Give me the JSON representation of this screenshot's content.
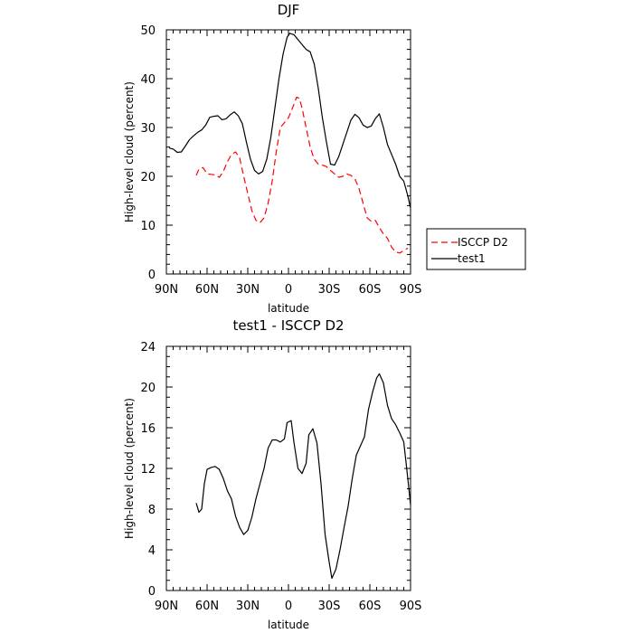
{
  "chart_data": [
    {
      "type": "line",
      "title": "DJF",
      "xlabel": "latitude",
      "ylabel": "High-level cloud (percent)",
      "xlim": [
        -90,
        90
      ],
      "ylim": [
        0,
        50
      ],
      "x_ticks": [
        -90,
        -60,
        -30,
        0,
        30,
        60,
        90
      ],
      "x_tick_labels": [
        "90N",
        "60N",
        "30N",
        "0",
        "30S",
        "60S",
        "90S"
      ],
      "y_ticks": [
        0,
        10,
        20,
        30,
        40,
        50
      ],
      "y_tick_labels": [
        "0",
        "10",
        "20",
        "30",
        "40",
        "50"
      ],
      "legend_position": "right",
      "grid": false,
      "series": [
        {
          "name": "ISCCP D2",
          "color": "#ff0000",
          "dash": "dashed",
          "points": [
            [
              -68,
              20.2
            ],
            [
              -66,
              21.5
            ],
            [
              -63,
              21.8
            ],
            [
              -60,
              20.5
            ],
            [
              -57,
              20.4
            ],
            [
              -54,
              20.3
            ],
            [
              -51,
              19.8
            ],
            [
              -48,
              21.0
            ],
            [
              -45,
              23.0
            ],
            [
              -42,
              24.5
            ],
            [
              -39,
              25.0
            ],
            [
              -36,
              23.8
            ],
            [
              -33,
              20.0
            ],
            [
              -30,
              16.5
            ],
            [
              -27,
              13.0
            ],
            [
              -24,
              11.0
            ],
            [
              -21,
              10.5
            ],
            [
              -18,
              11.5
            ],
            [
              -15,
              14.5
            ],
            [
              -12,
              19.0
            ],
            [
              -9,
              25.0
            ],
            [
              -6,
              30.0
            ],
            [
              -3,
              31.0
            ],
            [
              0,
              32.0
            ],
            [
              3,
              34.0
            ],
            [
              6,
              36.2
            ],
            [
              8,
              36.0
            ],
            [
              10,
              34.0
            ],
            [
              13,
              30.0
            ],
            [
              16,
              26.0
            ],
            [
              19,
              23.5
            ],
            [
              22,
              22.5
            ],
            [
              25,
              22.3
            ],
            [
              28,
              22.0
            ],
            [
              31,
              21.2
            ],
            [
              34,
              20.5
            ],
            [
              37,
              19.8
            ],
            [
              40,
              20.0
            ],
            [
              43,
              20.5
            ],
            [
              46,
              20.2
            ],
            [
              49,
              19.5
            ],
            [
              52,
              17.5
            ],
            [
              55,
              14.5
            ],
            [
              58,
              11.5
            ],
            [
              61,
              10.8
            ],
            [
              64,
              11.0
            ],
            [
              67,
              9.5
            ],
            [
              70,
              8.2
            ],
            [
              73,
              7.3
            ],
            [
              76,
              5.5
            ],
            [
              79,
              4.5
            ],
            [
              82,
              4.3
            ],
            [
              85,
              4.8
            ],
            [
              88,
              5.3
            ]
          ]
        },
        {
          "name": "test1",
          "color": "#000000",
          "dash": "solid",
          "points": [
            [
              -88,
              25.8
            ],
            [
              -85,
              25.6
            ],
            [
              -82,
              24.9
            ],
            [
              -79,
              25.0
            ],
            [
              -76,
              26.2
            ],
            [
              -73,
              27.5
            ],
            [
              -70,
              28.3
            ],
            [
              -67,
              29.0
            ],
            [
              -64,
              29.5
            ],
            [
              -61,
              30.5
            ],
            [
              -58,
              32.1
            ],
            [
              -55,
              32.3
            ],
            [
              -52,
              32.4
            ],
            [
              -49,
              31.6
            ],
            [
              -46,
              31.8
            ],
            [
              -43,
              32.6
            ],
            [
              -40,
              33.2
            ],
            [
              -37,
              32.4
            ],
            [
              -34,
              30.8
            ],
            [
              -31,
              27.0
            ],
            [
              -28,
              23.5
            ],
            [
              -25,
              21.2
            ],
            [
              -22,
              20.5
            ],
            [
              -19,
              21.0
            ],
            [
              -16,
              23.5
            ],
            [
              -13,
              28.0
            ],
            [
              -10,
              34.0
            ],
            [
              -7,
              40.0
            ],
            [
              -4,
              45.0
            ],
            [
              -1,
              48.5
            ],
            [
              1,
              49.3
            ],
            [
              4,
              49.0
            ],
            [
              7,
              48.0
            ],
            [
              10,
              47.0
            ],
            [
              13,
              46.0
            ],
            [
              16,
              45.5
            ],
            [
              19,
              43.0
            ],
            [
              22,
              38.0
            ],
            [
              25,
              32.0
            ],
            [
              28,
              27.0
            ],
            [
              31,
              22.5
            ],
            [
              34,
              22.3
            ],
            [
              37,
              24.0
            ],
            [
              40,
              26.5
            ],
            [
              43,
              29.0
            ],
            [
              46,
              31.5
            ],
            [
              49,
              32.7
            ],
            [
              52,
              32.0
            ],
            [
              55,
              30.5
            ],
            [
              58,
              30.0
            ],
            [
              61,
              30.3
            ],
            [
              64,
              31.8
            ],
            [
              67,
              32.8
            ],
            [
              70,
              30.0
            ],
            [
              73,
              26.5
            ],
            [
              76,
              24.5
            ],
            [
              79,
              22.5
            ],
            [
              82,
              20.0
            ],
            [
              85,
              19.0
            ],
            [
              88,
              16.0
            ],
            [
              90,
              13.5
            ]
          ]
        }
      ]
    },
    {
      "type": "line",
      "title": "test1 - ISCCP D2",
      "xlabel": "latitude",
      "ylabel": "High-level cloud (percent)",
      "xlim": [
        -90,
        90
      ],
      "ylim": [
        0,
        24
      ],
      "x_ticks": [
        -90,
        -60,
        -30,
        0,
        30,
        60,
        90
      ],
      "x_tick_labels": [
        "90N",
        "60N",
        "30N",
        "0",
        "30S",
        "60S",
        "90S"
      ],
      "y_ticks": [
        0,
        4,
        8,
        12,
        16,
        20,
        24
      ],
      "y_tick_labels": [
        "0",
        "4",
        "8",
        "12",
        "16",
        "20",
        "24"
      ],
      "grid": false,
      "series": [
        {
          "color": "#000000",
          "dash": "solid",
          "points": [
            [
              -68,
              8.6
            ],
            [
              -66,
              7.7
            ],
            [
              -64,
              8.0
            ],
            [
              -62,
              10.5
            ],
            [
              -60,
              11.9
            ],
            [
              -57,
              12.1
            ],
            [
              -54,
              12.2
            ],
            [
              -51,
              11.9
            ],
            [
              -48,
              11.0
            ],
            [
              -45,
              9.8
            ],
            [
              -42,
              9.0
            ],
            [
              -39,
              7.3
            ],
            [
              -36,
              6.2
            ],
            [
              -33,
              5.5
            ],
            [
              -30,
              5.9
            ],
            [
              -27,
              7.2
            ],
            [
              -24,
              9.0
            ],
            [
              -21,
              10.5
            ],
            [
              -18,
              12.0
            ],
            [
              -15,
              14.0
            ],
            [
              -12,
              14.8
            ],
            [
              -9,
              14.8
            ],
            [
              -6,
              14.6
            ],
            [
              -3,
              14.9
            ],
            [
              -1,
              16.5
            ],
            [
              2,
              16.7
            ],
            [
              4,
              14.6
            ],
            [
              7,
              12.0
            ],
            [
              10,
              11.5
            ],
            [
              13,
              12.5
            ],
            [
              15,
              15.3
            ],
            [
              18,
              15.9
            ],
            [
              21,
              14.5
            ],
            [
              24,
              10.5
            ],
            [
              27,
              5.5
            ],
            [
              30,
              2.8
            ],
            [
              32,
              1.2
            ],
            [
              35,
              2.1
            ],
            [
              38,
              4.0
            ],
            [
              41,
              6.2
            ],
            [
              44,
              8.3
            ],
            [
              47,
              11.0
            ],
            [
              50,
              13.3
            ],
            [
              53,
              14.2
            ],
            [
              56,
              15.1
            ],
            [
              59,
              17.8
            ],
            [
              62,
              19.5
            ],
            [
              65,
              20.9
            ],
            [
              67,
              21.3
            ],
            [
              70,
              20.4
            ],
            [
              73,
              18.2
            ],
            [
              76,
              16.9
            ],
            [
              79,
              16.3
            ],
            [
              82,
              15.5
            ],
            [
              85,
              14.6
            ],
            [
              88,
              11.0
            ],
            [
              90,
              8.4
            ]
          ]
        }
      ]
    }
  ]
}
